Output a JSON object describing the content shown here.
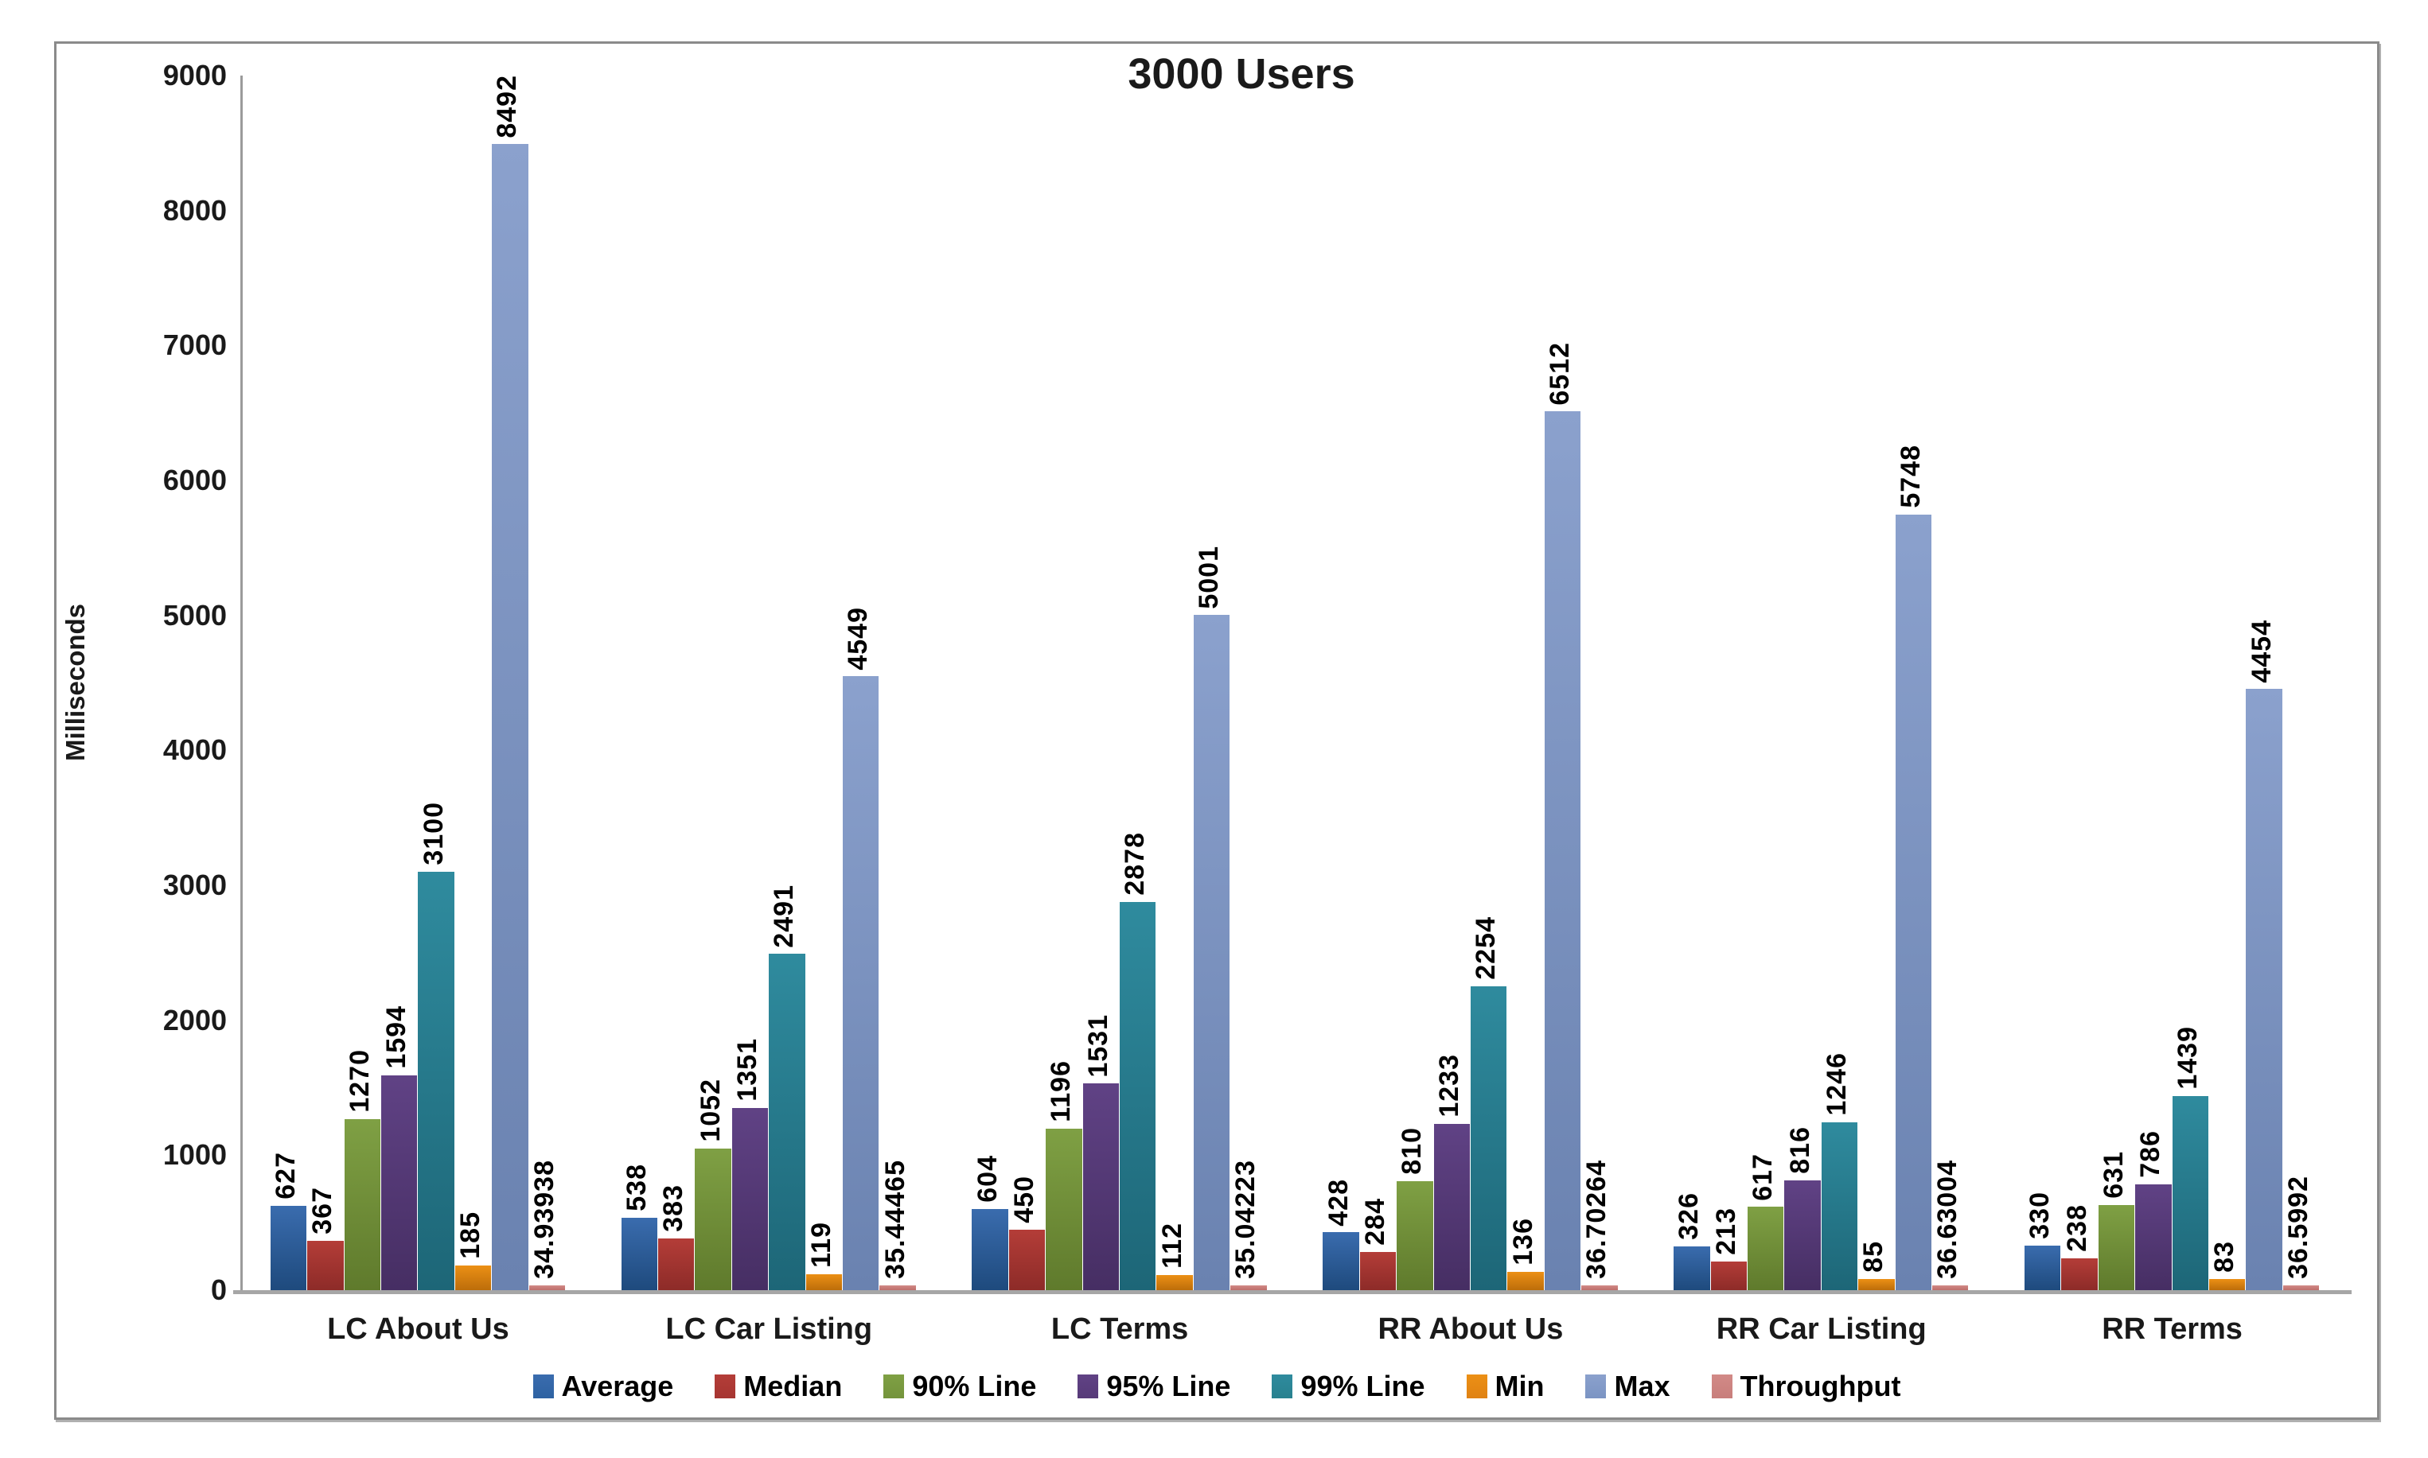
{
  "chart_data": {
    "type": "bar",
    "title": "3000 Users",
    "xlabel": "",
    "ylabel": "Milliseconds",
    "ylim": [
      0,
      9000
    ],
    "ytick_step": 1000,
    "grid": false,
    "legend_position": "bottom",
    "categories": [
      "LC About Us",
      "LC Car Listing",
      "LC Terms",
      "RR About Us",
      "RR Car Listing",
      "RR Terms"
    ],
    "series": [
      {
        "name": "Average",
        "color_top": "#3a6cae",
        "color_bottom": "#1e4a7d",
        "legend_color": "#2e62a2",
        "values": [
          627,
          538,
          604,
          428,
          326,
          330
        ],
        "labels": [
          "627",
          "538",
          "604",
          "428",
          "326",
          "330"
        ]
      },
      {
        "name": "Median",
        "color_top": "#b43d38",
        "color_bottom": "#8d2b28",
        "legend_color": "#a63531",
        "values": [
          367,
          383,
          450,
          284,
          213,
          238
        ],
        "labels": [
          "367",
          "383",
          "450",
          "284",
          "213",
          "238"
        ]
      },
      {
        "name": "90% Line",
        "color_top": "#7fa044",
        "color_bottom": "#5f7a2c",
        "legend_color": "#74943c",
        "values": [
          1270,
          1052,
          1196,
          810,
          617,
          631
        ],
        "labels": [
          "1270",
          "1052",
          "1196",
          "810",
          "617",
          "631"
        ]
      },
      {
        "name": "95% Line",
        "color_top": "#604285",
        "color_bottom": "#462e63",
        "legend_color": "#573a78",
        "values": [
          1594,
          1351,
          1531,
          1233,
          816,
          786
        ],
        "labels": [
          "1594",
          "1351",
          "1531",
          "1233",
          "816",
          "786"
        ]
      },
      {
        "name": "99% Line",
        "color_top": "#2f8b9e",
        "color_bottom": "#1d6677",
        "legend_color": "#28818f",
        "values": [
          3100,
          2491,
          2878,
          2254,
          1246,
          1439
        ],
        "labels": [
          "3100",
          "2491",
          "2878",
          "2254",
          "1246",
          "1439"
        ]
      },
      {
        "name": "Min",
        "color_top": "#ec9015",
        "color_bottom": "#bc6d0a",
        "legend_color": "#e08214",
        "values": [
          185,
          119,
          112,
          136,
          85,
          83
        ],
        "labels": [
          "185",
          "119",
          "112",
          "136",
          "85",
          "83"
        ]
      },
      {
        "name": "Max",
        "color_top": "#8ba1cd",
        "color_bottom": "#6a82b0",
        "legend_color": "#7b94c3",
        "values": [
          8492,
          4549,
          5001,
          6512,
          5748,
          4454
        ],
        "labels": [
          "8492",
          "4549",
          "5001",
          "6512",
          "5748",
          "4454"
        ]
      },
      {
        "name": "Throughput",
        "color_top": "#d28a87",
        "color_bottom": "#bd6e6b",
        "legend_color": "#c87e7b",
        "values": [
          34.93938,
          35.44465,
          35.04223,
          36.70264,
          36.63004,
          36.5992
        ],
        "labels": [
          "34.93938",
          "35.44465",
          "35.04223",
          "36.70264",
          "36.63004",
          "36.5992"
        ]
      }
    ]
  }
}
